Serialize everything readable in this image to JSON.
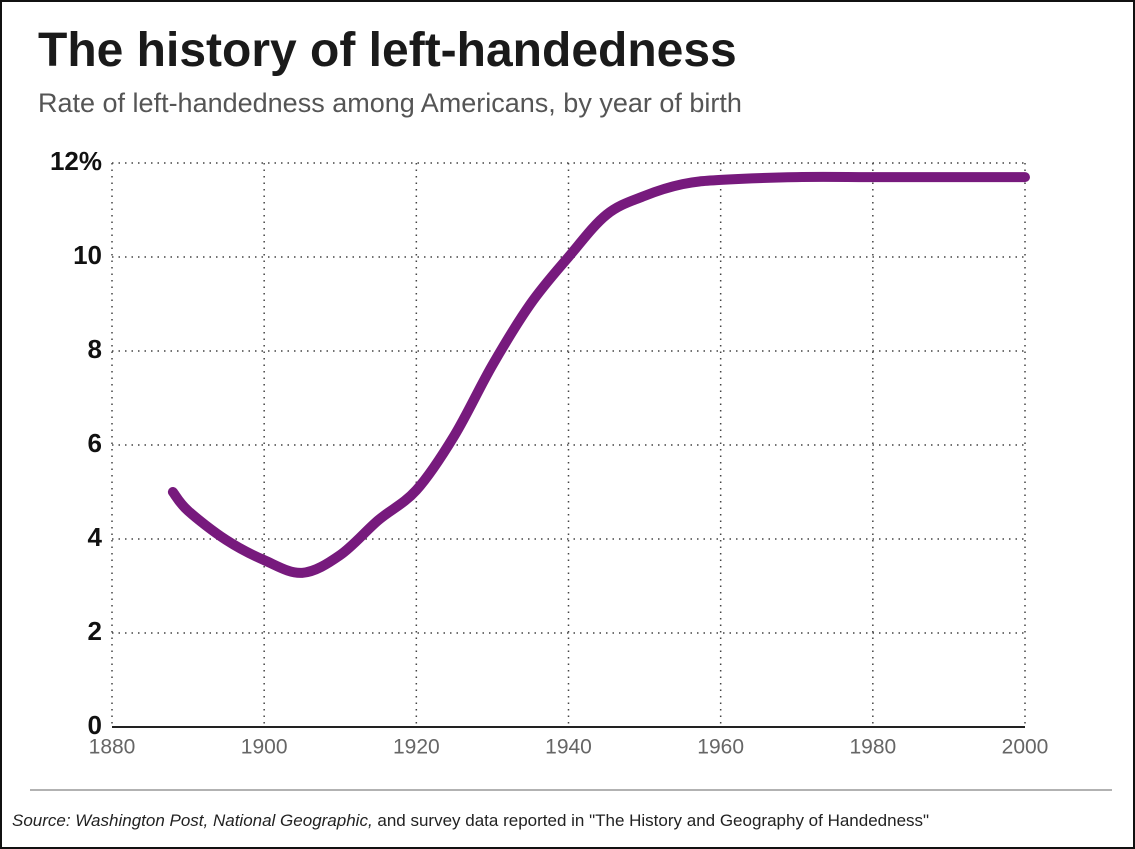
{
  "chart_data": {
    "type": "line",
    "title": "The history of left-handedness",
    "subtitle": "Rate of left-handedness among Americans, by year of birth",
    "x": [
      1888,
      1890,
      1895,
      1900,
      1905,
      1910,
      1915,
      1920,
      1925,
      1930,
      1935,
      1940,
      1945,
      1950,
      1955,
      1960,
      1970,
      1980,
      1990,
      2000
    ],
    "series": [
      {
        "name": "Left-handed rate",
        "color": "#771a7d",
        "values": [
          5.0,
          4.6,
          3.98,
          3.55,
          3.28,
          3.66,
          4.4,
          5.04,
          6.2,
          7.7,
          9.0,
          10.0,
          10.9,
          11.3,
          11.55,
          11.64,
          11.7,
          11.7,
          11.7,
          11.7
        ]
      }
    ],
    "xlim": [
      1880,
      2000
    ],
    "xticks": [
      1880,
      1900,
      1920,
      1940,
      1960,
      1980,
      2000
    ],
    "ylim": [
      0,
      12
    ],
    "yticks": [
      0,
      2,
      4,
      6,
      8,
      10,
      {
        "value": 12,
        "label": "12%"
      }
    ],
    "grid": true,
    "source": {
      "italic": "Source: Washington Post, National Geographic,",
      "text": " and survey data reported in \"The History and Geography of Handedness\""
    }
  }
}
